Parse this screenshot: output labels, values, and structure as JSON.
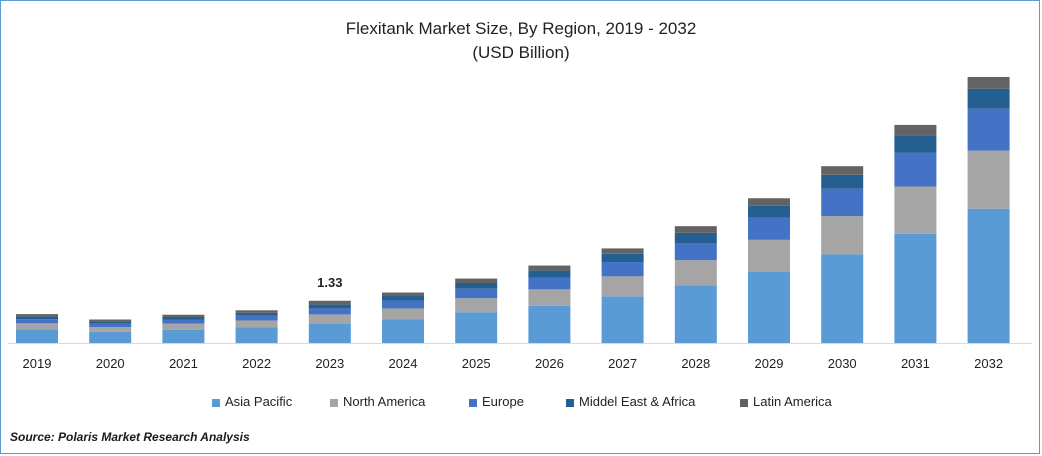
{
  "chart_data": {
    "type": "bar",
    "stacked": true,
    "title": "Flexitank Market  Size, By Region, 2019 - 2032",
    "subtitle": "(USD Billion)",
    "categories": [
      "2019",
      "2020",
      "2021",
      "2022",
      "2023",
      "2024",
      "2025",
      "2026",
      "2027",
      "2028",
      "2029",
      "2030",
      "2031",
      "2032"
    ],
    "series": [
      {
        "name": "Asia Pacific",
        "color": "#5b9bd5",
        "values": [
          0.43,
          0.35,
          0.42,
          0.49,
          0.62,
          0.74,
          0.97,
          1.17,
          1.47,
          1.81,
          2.26,
          2.79,
          3.44,
          4.23
        ]
      },
      {
        "name": "North America",
        "color": "#a5a5a5",
        "values": [
          0.19,
          0.15,
          0.19,
          0.22,
          0.28,
          0.35,
          0.44,
          0.52,
          0.63,
          0.8,
          0.99,
          1.21,
          1.49,
          1.83
        ]
      },
      {
        "name": "Europe",
        "color": "#4472c4",
        "values": [
          0.13,
          0.11,
          0.13,
          0.15,
          0.19,
          0.25,
          0.3,
          0.37,
          0.45,
          0.54,
          0.7,
          0.86,
          1.07,
          1.32
        ]
      },
      {
        "name": "Middel East & Africa",
        "color": "#255e91",
        "values": [
          0.09,
          0.07,
          0.08,
          0.09,
          0.12,
          0.14,
          0.18,
          0.22,
          0.26,
          0.32,
          0.37,
          0.44,
          0.54,
          0.63
        ]
      },
      {
        "name": "Latin America",
        "color": "#636363",
        "values": [
          0.07,
          0.06,
          0.07,
          0.08,
          0.12,
          0.11,
          0.14,
          0.16,
          0.17,
          0.21,
          0.24,
          0.27,
          0.33,
          0.37
        ]
      }
    ],
    "data_labels": [
      {
        "category": "2023",
        "text": "1.33"
      }
    ],
    "ylim": [
      0,
      8.6
    ],
    "grid": false,
    "legend_position": "bottom"
  },
  "source": "Source: Polaris  Market Research Analysis"
}
